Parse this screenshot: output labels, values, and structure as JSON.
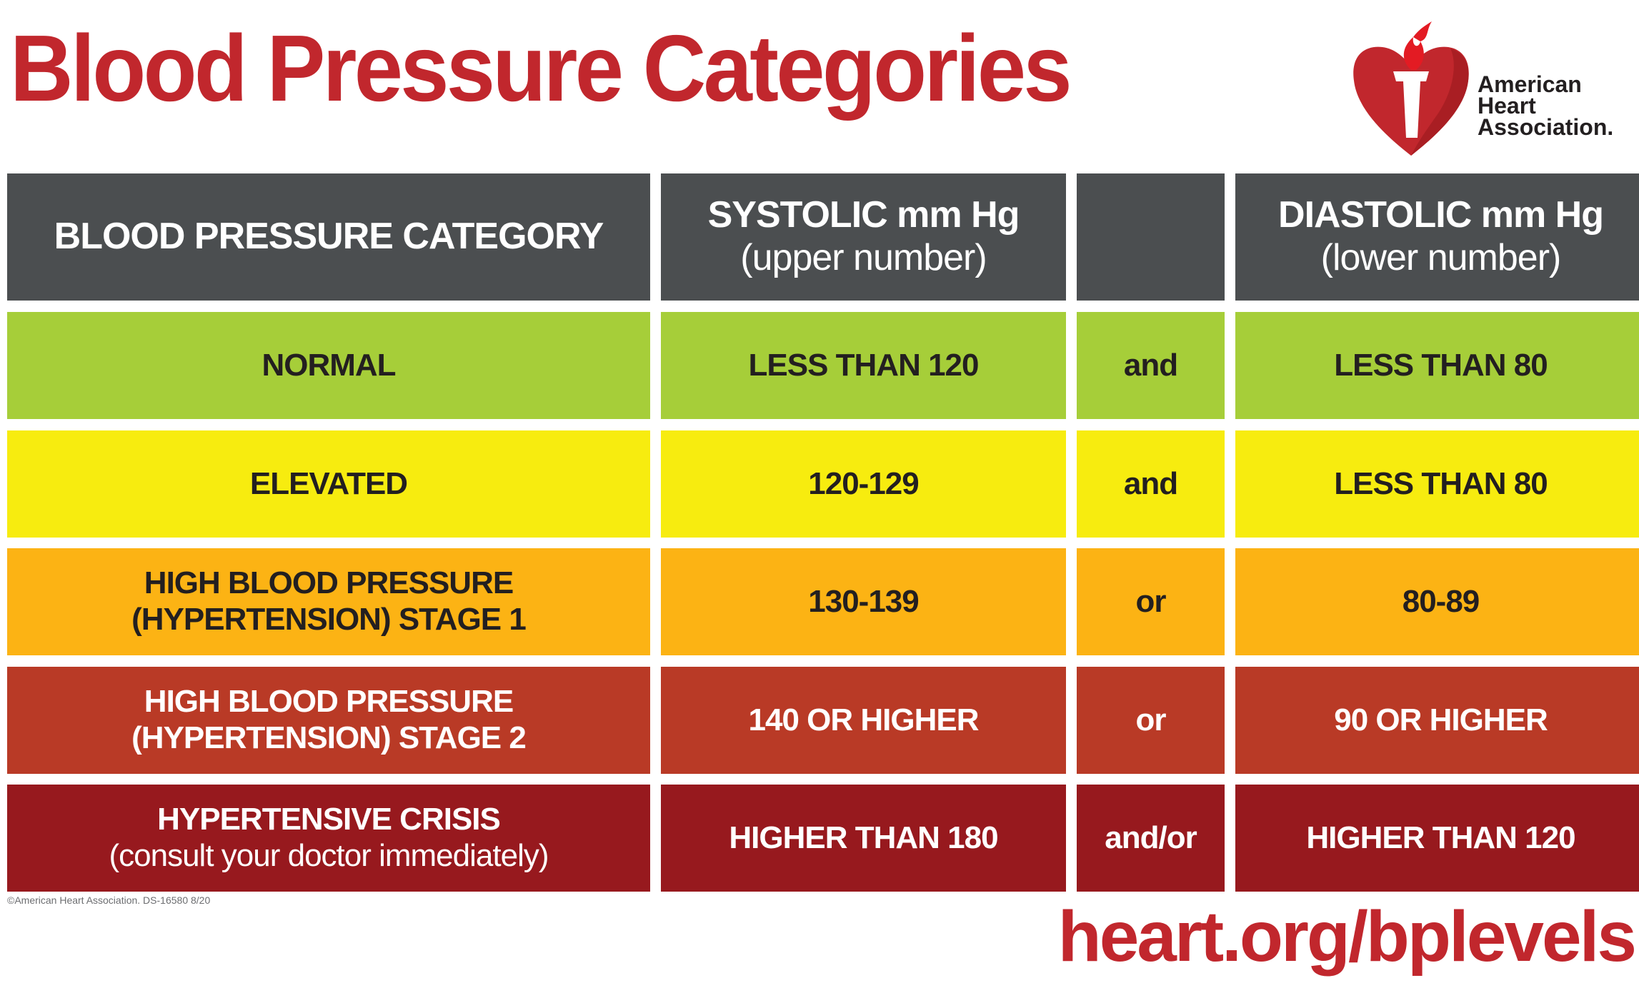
{
  "title": "Blood Pressure Categories",
  "logo": {
    "icon": "heart-torch-icon",
    "lines": [
      "American",
      "Heart",
      "Association."
    ],
    "colors": {
      "heart": "#c1272d",
      "torch": "#ffffff",
      "flame": "#e31b23"
    }
  },
  "table": {
    "headers": {
      "category": "BLOOD PRESSURE CATEGORY",
      "systolic": "SYSTOLIC mm Hg",
      "systolic_sub": "(upper number)",
      "connector": "",
      "diastolic": "DIASTOLIC mm Hg",
      "diastolic_sub": "(lower number)"
    },
    "rows": [
      {
        "category": "NORMAL",
        "category_sub": "",
        "systolic": "LESS THAN 120",
        "connector": "and",
        "diastolic": "LESS THAN 80",
        "color": "#a6ce39"
      },
      {
        "category": "ELEVATED",
        "category_sub": "",
        "systolic": "120-129",
        "connector": "and",
        "diastolic": "LESS THAN 80",
        "color": "#f7ec0f"
      },
      {
        "category": "HIGH BLOOD PRESSURE",
        "category_sub": "(HYPERTENSION) STAGE 1",
        "systolic": "130-139",
        "connector": "or",
        "diastolic": "80-89",
        "color": "#fcb314"
      },
      {
        "category": "HIGH BLOOD PRESSURE",
        "category_sub": "(HYPERTENSION) STAGE 2",
        "systolic": "140 OR HIGHER",
        "connector": "or",
        "diastolic": "90 OR HIGHER",
        "color": "#b93a26"
      },
      {
        "category": "HYPERTENSIVE CRISIS",
        "category_sub": "(consult your doctor immediately)",
        "systolic": "HIGHER THAN 180",
        "connector": "and/or",
        "diastolic": "HIGHER THAN 120",
        "color": "#97191e"
      }
    ]
  },
  "copyright": "©American Heart Association. DS-16580 8/20",
  "url": "heart.org/bplevels",
  "colors": {
    "brand_red": "#c1272d",
    "header_gray": "#4b4e50"
  }
}
